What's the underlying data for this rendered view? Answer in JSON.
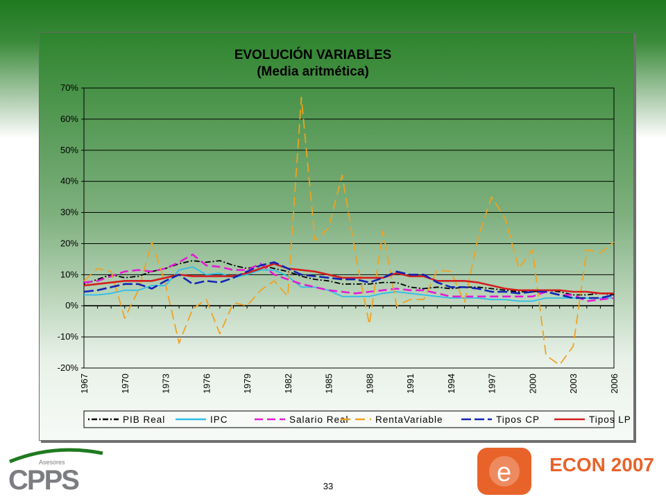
{
  "page": {
    "number": "33"
  },
  "logos": {
    "left": {
      "small_text": "Asesores",
      "big_text": "CPPS"
    },
    "right": {
      "badge_letter": "e",
      "text": "ECON 2007"
    }
  },
  "colors": {
    "header_green": "#1f7a1f",
    "econ_orange": "#e8632a",
    "cpps_gray": "#7b7d80"
  },
  "chart_data": {
    "type": "line",
    "title": "EVOLUCIÓN VARIABLES",
    "subtitle": "(Media aritmética)",
    "ylim": [
      -20,
      70
    ],
    "yticks": [
      -20,
      -10,
      0,
      10,
      20,
      30,
      40,
      50,
      60,
      70
    ],
    "ytick_labels": [
      "-20%",
      "-10%",
      "0%",
      "10%",
      "20%",
      "30%",
      "40%",
      "50%",
      "60%",
      "70%"
    ],
    "xlim": [
      1967,
      2006
    ],
    "xtick_labels": [
      "1967",
      "1970",
      "1973",
      "1976",
      "1979",
      "1982",
      "1985",
      "1988",
      "1991",
      "1994",
      "1997",
      "2000",
      "2003",
      "2006"
    ],
    "grid": "horizontal",
    "legend_position": "bottom",
    "x": [
      1967,
      1968,
      1969,
      1970,
      1971,
      1972,
      1973,
      1974,
      1975,
      1976,
      1977,
      1978,
      1979,
      1980,
      1981,
      1982,
      1983,
      1984,
      1985,
      1986,
      1987,
      1988,
      1989,
      1990,
      1991,
      1992,
      1993,
      1994,
      1995,
      1996,
      1997,
      1998,
      1999,
      2000,
      2001,
      2002,
      2003,
      2004,
      2005,
      2006
    ],
    "series": [
      {
        "name": "PIB Real",
        "color": "#000000",
        "dash": "2,3,8,3",
        "values": [
          7,
          8.5,
          10,
          9,
          9.5,
          11,
          12,
          13.5,
          14.5,
          14,
          14.5,
          13,
          12,
          13,
          12,
          11,
          9.5,
          8.5,
          8,
          7,
          7,
          7,
          7.5,
          7.5,
          6,
          5.5,
          6,
          5.5,
          6,
          6,
          5.5,
          5,
          4.5,
          4.5,
          5,
          4.5,
          3.5,
          3.5,
          4,
          3.5
        ]
      },
      {
        "name": "IPC",
        "color": "#2ebde8",
        "dash": "",
        "values": [
          3.5,
          3.5,
          4,
          5,
          5,
          6.5,
          6.5,
          11.5,
          12.5,
          10,
          10.5,
          9,
          10,
          11.5,
          11.5,
          9.5,
          6,
          6,
          5,
          3,
          3,
          3,
          4,
          4.5,
          4,
          3.5,
          3,
          2.5,
          2.5,
          2.5,
          2,
          2,
          1.5,
          1.5,
          2.5,
          2.5,
          2.5,
          2.5,
          2.5,
          2.5
        ]
      },
      {
        "name": "Salario Real",
        "color": "#e619d6",
        "dash": "12,6",
        "values": [
          7.5,
          8,
          9.5,
          11,
          11.5,
          11,
          12,
          14,
          16.5,
          13,
          12.5,
          11.5,
          11.5,
          13.5,
          10,
          8.5,
          7,
          6,
          5,
          4.5,
          4,
          4.5,
          5,
          5.5,
          5,
          5,
          4,
          3,
          3,
          3,
          3,
          3,
          3,
          3,
          4.5,
          3.5,
          3.5,
          1.5,
          2,
          2.5
        ]
      },
      {
        "name": "RentaVariable",
        "color": "#f0a21f",
        "dash": "14,7",
        "values": [
          8,
          12,
          11,
          -4,
          5,
          20.5,
          7,
          -12,
          -1,
          2,
          -9,
          1,
          0,
          5,
          8,
          3,
          67,
          21,
          25,
          42,
          16,
          -6,
          24,
          0,
          2,
          2,
          11.5,
          11,
          1,
          22,
          35,
          28,
          12,
          18,
          -16,
          -19,
          -13,
          18,
          17,
          20.5
        ]
      },
      {
        "name": "Tipos CP",
        "color": "#1323b4",
        "dash": "14,5",
        "values": [
          4.5,
          5,
          6,
          7,
          7,
          5.5,
          8,
          10,
          7,
          8,
          7.5,
          9,
          11,
          13,
          14,
          12,
          10,
          9.5,
          9,
          8.5,
          8.5,
          7.5,
          9,
          11,
          10,
          10,
          7.5,
          6,
          6,
          5.5,
          4.5,
          4.5,
          4,
          4.5,
          4.5,
          3.5,
          2.5,
          2.5,
          2.5,
          3.5
        ]
      },
      {
        "name": "Tipos LP",
        "color": "#d41e1e",
        "dash": "",
        "values": [
          6.5,
          7,
          7.5,
          8,
          8,
          8,
          9,
          10,
          9.5,
          9.5,
          9.5,
          9.5,
          10.5,
          12,
          13.5,
          12,
          11.5,
          11,
          10,
          9,
          9,
          9,
          9,
          10.5,
          9.5,
          9.5,
          8,
          8,
          8,
          7.5,
          6.5,
          5.5,
          5,
          5,
          5,
          5,
          4.5,
          4.5,
          4,
          4
        ]
      }
    ]
  }
}
